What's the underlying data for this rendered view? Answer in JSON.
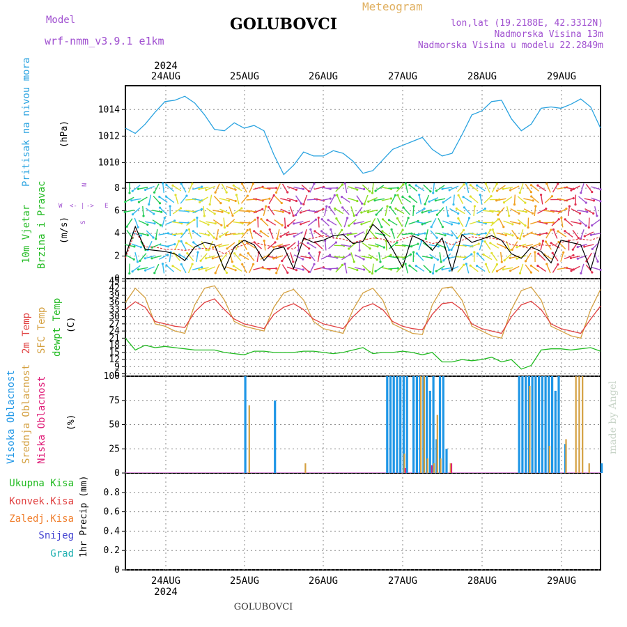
{
  "header": {
    "model_label": "Model",
    "model_name": "wrf-nmm_v3.9.1 e1km",
    "station": "GOLUBOVCI",
    "product": "Meteogram",
    "lonlat": "lon,lat (19.2188E, 42.3312N)",
    "elevation": "Nadmorska Visina 13m",
    "model_elevation": "Nadmorska Visina u modelu 22.2849m",
    "watermark": "made by Angel",
    "footer": "GOLUBOVCI"
  },
  "axis_top": {
    "year": "2024",
    "days": [
      "24AUG",
      "25AUG",
      "26AUG",
      "27AUG",
      "28AUG",
      "29AUG"
    ]
  },
  "axis_bottom": {
    "year": "2024",
    "days": [
      "24AUG",
      "25AUG",
      "26AUG",
      "27AUG",
      "28AUG",
      "29AUG"
    ]
  },
  "colors": {
    "pressure": "#2aa3e0",
    "wind_speed": "#000000",
    "wind_gust": "#e04040",
    "temp2m": "#e04040",
    "sfc": "#d4a040",
    "dewpt": "#22bb22",
    "high_cloud": "#1e96e6",
    "mid_cloud": "#d4a040",
    "low_cloud": "#e0207a",
    "precip_total": "#22bb22",
    "precip_conv": "#e04040",
    "precip_frozen": "#f08030",
    "snow": "#4040d0",
    "graupel": "#20b0b0"
  },
  "panel_labels": {
    "pressure": {
      "name": "Pritisak na nivou mora",
      "unit": "(hPa)"
    },
    "wind": {
      "name1": "10m Vjetar",
      "name2": "Brzina i Pravac",
      "unit": "(m/s)",
      "compass": [
        "W",
        "<-",
        "|",
        "->",
        "E",
        "S",
        "N"
      ]
    },
    "temp": {
      "name1": "2m Temp",
      "name2": "SFC Temp",
      "name3": "dewpt Temp",
      "unit": "(C)"
    },
    "cloud": {
      "name1": "Visoka Oblacnost",
      "name2": "Srednja Oblacnost",
      "name3": "Niska Oblacnost",
      "unit": "(%)"
    },
    "precip": {
      "unit": "1hr Precip (mm)",
      "legend": [
        "Ukupna Kisa",
        "Konvek.Kisa",
        "Zaledj.Kisa",
        "Snijeg",
        "Grad"
      ]
    }
  },
  "chart_data": [
    {
      "type": "line",
      "name": "pressure",
      "x_range_hours": [
        0,
        144
      ],
      "ylim": [
        1008.5,
        1015.8
      ],
      "yticks": [
        "1010",
        "1012",
        "1014"
      ],
      "x": [
        0,
        3,
        6,
        9,
        12,
        15,
        18,
        21,
        24,
        27,
        30,
        33,
        36,
        39,
        42,
        45,
        48,
        51,
        54,
        57,
        60,
        63,
        66,
        69,
        72,
        75,
        78,
        81,
        84,
        87,
        90,
        93,
        96,
        99,
        102,
        105,
        108,
        111,
        114,
        117,
        120,
        123,
        126,
        129,
        132,
        135,
        138,
        141,
        144
      ],
      "values": [
        1012.6,
        1012.2,
        1012.9,
        1013.8,
        1014.6,
        1014.7,
        1015.0,
        1014.5,
        1013.6,
        1012.5,
        1012.4,
        1013.0,
        1012.6,
        1012.8,
        1012.4,
        1010.6,
        1009.1,
        1009.8,
        1010.8,
        1010.5,
        1010.5,
        1010.9,
        1010.7,
        1010.1,
        1009.2,
        1009.4,
        1010.2,
        1011.0,
        1011.3,
        1011.6,
        1011.9,
        1011.0,
        1010.5,
        1010.7,
        1012.1,
        1013.6,
        1013.9,
        1014.6,
        1014.7,
        1013.3,
        1012.4,
        1012.9,
        1014.1,
        1014.2,
        1014.1,
        1014.4,
        1014.8,
        1014.2,
        1012.6
      ]
    },
    {
      "type": "line",
      "name": "wind",
      "x_range_hours": [
        0,
        144
      ],
      "ylim": [
        0,
        8.5
      ],
      "yticks": [
        "0",
        "2",
        "4",
        "6",
        "8"
      ],
      "series": [
        {
          "name": "speed",
          "values": [
            2.0,
            4.6,
            2.6,
            2.5,
            2.4,
            2.2,
            1.6,
            2.8,
            3.2,
            3.0,
            0.8,
            2.8,
            3.4,
            3.0,
            1.6,
            2.6,
            2.8,
            0.9,
            3.6,
            3.2,
            3.4,
            3.8,
            3.9,
            3.1,
            3.3,
            4.8,
            4.0,
            2.6,
            1.0,
            3.8,
            3.4,
            2.5,
            3.6,
            0.7,
            3.9,
            3.2,
            3.5,
            3.8,
            3.4,
            2.2,
            1.8,
            2.8,
            2.4,
            1.4,
            3.4,
            3.2,
            3.0,
            0.8,
            3.8
          ]
        },
        {
          "name": "gust",
          "values": [
            1.8,
            4.2,
            2.8,
            2.8,
            2.6,
            2.6,
            2.5,
            2.6,
            2.7,
            2.6,
            2.2,
            2.7,
            3.0,
            3.2,
            3.0,
            2.8,
            2.9,
            2.6,
            3.4,
            3.6,
            3.8,
            3.6,
            3.5,
            3.2,
            3.4,
            3.6,
            3.5,
            3.2,
            3.5,
            3.8,
            3.4,
            3.1,
            3.3,
            3.0,
            3.4,
            3.7,
            3.6,
            3.6,
            3.4,
            3.0,
            2.9,
            2.6,
            3.0,
            2.9,
            3.2,
            3.4,
            3.5,
            3.4,
            3.7
          ]
        }
      ]
    },
    {
      "type": "line",
      "name": "temperature",
      "x_range_hours": [
        0,
        144
      ],
      "ylim": [
        5,
        46
      ],
      "yticks": [
        "6",
        "9",
        "12",
        "15",
        "18",
        "21",
        "24",
        "27",
        "30",
        "33",
        "36",
        "39",
        "42",
        "45"
      ],
      "series": [
        {
          "name": "2m",
          "values": [
            33,
            36.3,
            34,
            28,
            27,
            26,
            25.5,
            32,
            36,
            37.5,
            33,
            29,
            27,
            26,
            25,
            31,
            34,
            35.5,
            33,
            29,
            27,
            26,
            25,
            30,
            34,
            35.5,
            33,
            28,
            26,
            25,
            24.5,
            31,
            35.5,
            36,
            33,
            27,
            25,
            24,
            23,
            30,
            35,
            36.5,
            33,
            27,
            25,
            24,
            23,
            29,
            34.5
          ]
        },
        {
          "name": "sfc",
          "values": [
            36,
            42,
            38,
            27,
            26,
            24,
            23,
            35,
            42,
            43,
            37,
            28,
            26,
            25,
            24,
            34,
            40,
            41.5,
            37,
            28,
            25,
            24,
            23,
            33,
            40,
            42,
            37,
            27,
            25,
            23,
            22.5,
            35,
            42,
            42.5,
            37,
            26,
            24,
            22,
            21,
            33,
            41,
            42.5,
            37,
            26,
            24,
            22,
            21,
            33,
            41.5
          ]
        },
        {
          "name": "dewpt",
          "values": [
            21,
            16,
            18,
            17,
            17.5,
            17,
            16.5,
            16,
            16,
            16,
            15,
            14.5,
            14,
            15.5,
            15.5,
            15,
            15,
            15,
            15.5,
            15.5,
            15,
            14.5,
            15,
            16,
            17,
            14.5,
            15,
            15,
            15.5,
            15,
            14,
            15,
            11,
            11,
            12,
            11.5,
            12,
            13,
            11,
            12,
            8,
            9.5,
            16,
            16.5,
            16.5,
            16,
            16.5,
            17,
            15.5
          ]
        }
      ]
    },
    {
      "type": "bar",
      "name": "cloud_cover",
      "x_range_hours": [
        0,
        144
      ],
      "ylim": [
        0,
        100
      ],
      "yticks": [
        "0",
        "25",
        "50",
        "75",
        "100"
      ],
      "series": [
        {
          "name": "high",
          "points": [
            [
              36,
              100
            ],
            [
              45,
              75
            ],
            [
              79,
              100
            ],
            [
              80,
              100
            ],
            [
              81,
              100
            ],
            [
              82,
              100
            ],
            [
              83,
              100
            ],
            [
              84,
              100
            ],
            [
              85,
              100
            ],
            [
              87,
              100
            ],
            [
              88,
              100
            ],
            [
              89,
              100
            ],
            [
              90,
              100
            ],
            [
              91,
              100
            ],
            [
              92,
              85
            ],
            [
              93,
              100
            ],
            [
              94,
              35
            ],
            [
              95,
              100
            ],
            [
              96,
              100
            ],
            [
              97,
              25
            ],
            [
              119,
              100
            ],
            [
              120,
              100
            ],
            [
              121,
              100
            ],
            [
              122,
              100
            ],
            [
              123,
              100
            ],
            [
              124,
              100
            ],
            [
              125,
              100
            ],
            [
              126,
              100
            ],
            [
              127,
              100
            ],
            [
              128,
              100
            ],
            [
              129,
              100
            ],
            [
              130,
              85
            ],
            [
              131,
              100
            ],
            [
              133,
              30
            ],
            [
              144,
              10
            ]
          ]
        },
        {
          "name": "mid",
          "points": [
            [
              37,
              70
            ],
            [
              54,
              10
            ],
            [
              84,
              20
            ],
            [
              89,
              100
            ],
            [
              90,
              100
            ],
            [
              91,
              15
            ],
            [
              93,
              10
            ],
            [
              94,
              60
            ],
            [
              95,
              15
            ],
            [
              98,
              10
            ],
            [
              122,
              90
            ],
            [
              128,
              28
            ],
            [
              133,
              35
            ],
            [
              136,
              100
            ],
            [
              137,
              100
            ],
            [
              138,
              100
            ],
            [
              140,
              10
            ]
          ]
        },
        {
          "name": "low",
          "points": [
            [
              84,
              5
            ],
            [
              92,
              8
            ],
            [
              98,
              10
            ]
          ]
        }
      ]
    },
    {
      "type": "bar",
      "name": "precipitation",
      "x_range_hours": [
        0,
        144
      ],
      "ylim": [
        0,
        1.0
      ],
      "yticks": [
        "0",
        "0.2",
        "0.4",
        "0.6",
        "0.8"
      ],
      "series": [
        {
          "name": "total",
          "points": []
        }
      ]
    }
  ]
}
